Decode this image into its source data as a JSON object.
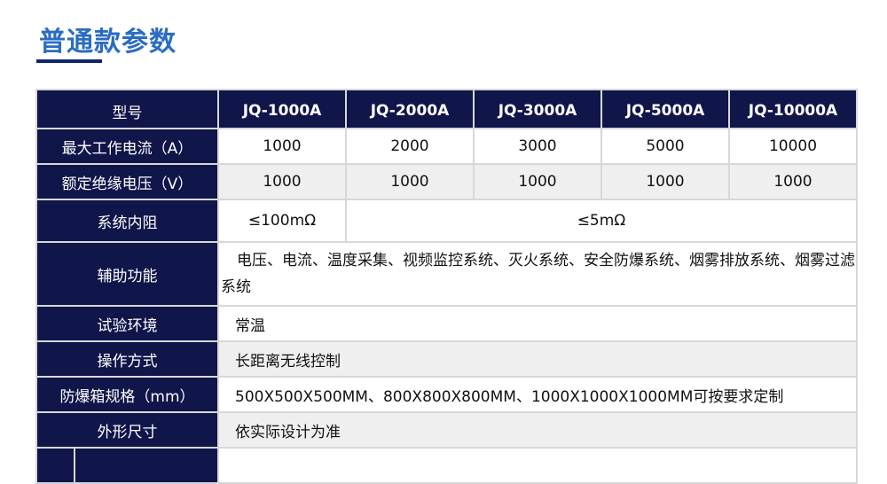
{
  "title": "普通款参数",
  "table": {
    "header": [
      "型号",
      "JQ-1000A",
      "JQ-2000A",
      "JQ-3000A",
      "JQ-5000A",
      "JQ-10000A"
    ],
    "max_current": {
      "label": "最大工作电流（A）",
      "values": [
        "1000",
        "2000",
        "3000",
        "5000",
        "10000"
      ]
    },
    "rated_voltage": {
      "label": "额定绝缘电压（V）",
      "values": [
        "1000",
        "1000",
        "1000",
        "1000",
        "1000"
      ]
    },
    "resistance": {
      "label": "系统内阻",
      "first": "≤100mΩ",
      "rest": "≤5mΩ"
    },
    "aux": {
      "label": "辅助功能",
      "value": "电压、电流、温度采集、视频监控系统、灭火系统、安全防爆系统、烟雾排放系统、烟雾过滤系统"
    },
    "env": {
      "label": "试验环境",
      "value": "常温"
    },
    "operation": {
      "label": "操作方式",
      "value": "长距离无线控制"
    },
    "box": {
      "label": "防爆箱规格（mm）",
      "value": "500X500X500MM、800X800X800MM、1000X1000X1000MM可按要求定制"
    },
    "size": {
      "label": "外形尺寸",
      "value": "依实际设计为准"
    }
  }
}
